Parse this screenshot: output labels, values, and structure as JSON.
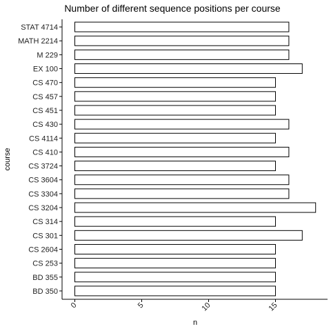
{
  "chart_data": {
    "type": "bar",
    "orientation": "horizontal",
    "title": "Number of different sequence positions per course",
    "xlabel": "n",
    "ylabel": "course",
    "categories": [
      "STAT 4714",
      "MATH 2214",
      "M 229",
      "EX 100",
      "CS 470",
      "CS 457",
      "CS 451",
      "CS 430",
      "CS 4114",
      "CS 410",
      "CS 3724",
      "CS 3604",
      "CS 3304",
      "CS 3204",
      "CS 314",
      "CS 301",
      "CS 2604",
      "CS 253",
      "BD 355",
      "BD 350"
    ],
    "values": [
      16,
      16,
      16,
      17,
      15,
      15,
      15,
      16,
      15,
      16,
      15,
      16,
      16,
      18,
      15,
      17,
      15,
      15,
      15,
      15
    ],
    "xlim": [
      0,
      18.5
    ],
    "xticks": [
      0,
      5,
      10,
      15
    ],
    "xtick_labels": [
      "0",
      "5",
      "10",
      "15"
    ],
    "grid": false,
    "bar_fill": "#ffffff",
    "bar_stroke": "#000000"
  }
}
